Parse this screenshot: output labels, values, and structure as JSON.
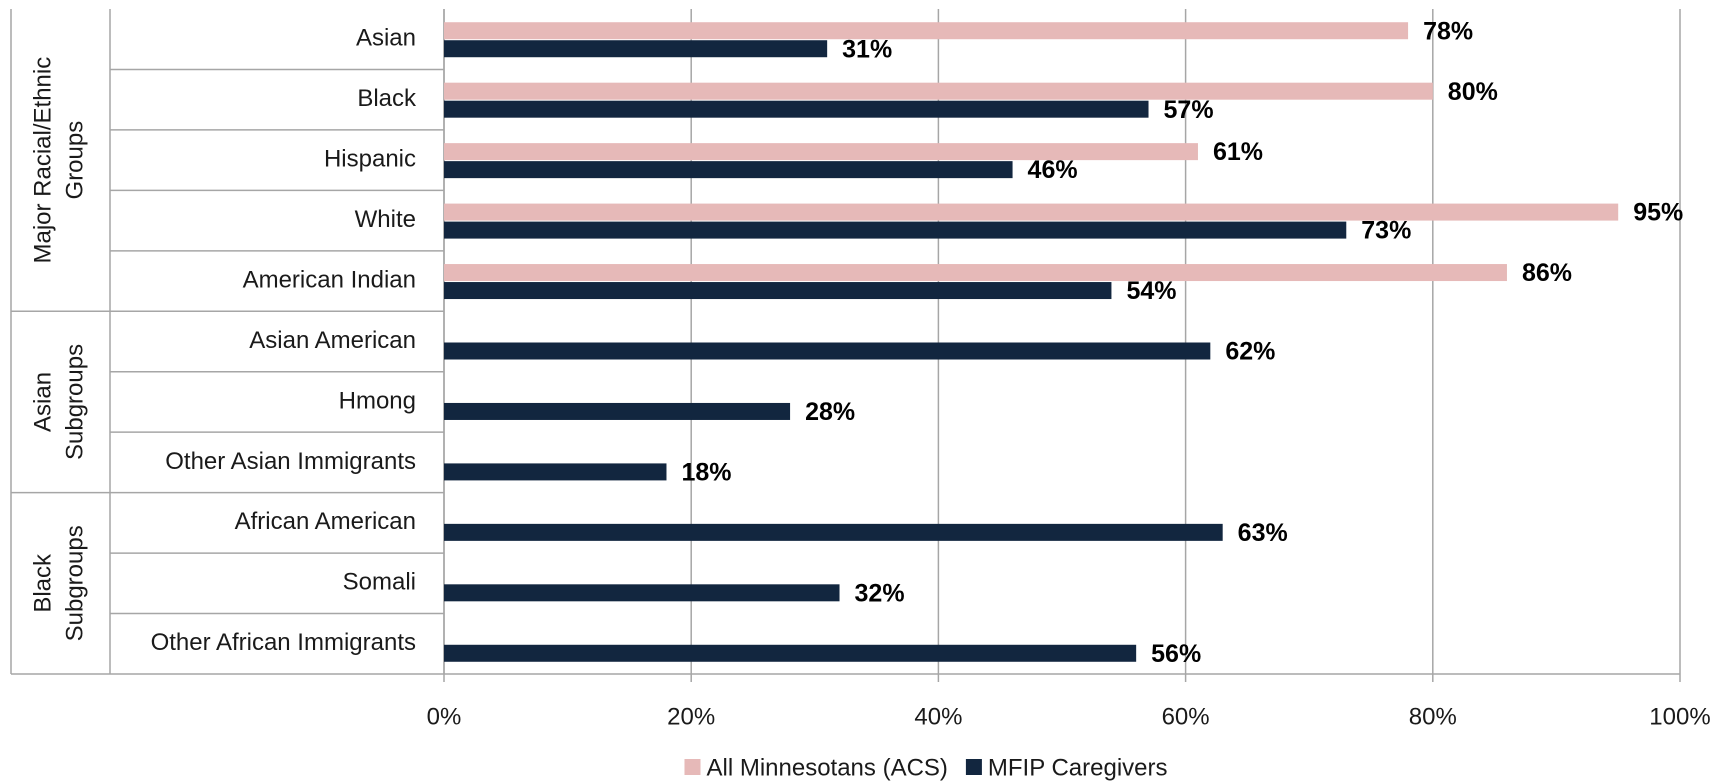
{
  "chart_data": {
    "type": "bar",
    "orientation": "horizontal",
    "groups": [
      {
        "label_lines": [
          "Major Racial/Ethnic",
          "Groups"
        ],
        "categories": [
          "Asian",
          "Black",
          "Hispanic",
          "White",
          "American Indian"
        ]
      },
      {
        "label_lines": [
          "Asian",
          "Subgroups"
        ],
        "categories": [
          "Asian American",
          "Hmong",
          "Other Asian Immigrants"
        ]
      },
      {
        "label_lines": [
          "Black",
          "Subgroups"
        ],
        "categories": [
          "African American",
          "Somali",
          "Other African Immigrants"
        ]
      }
    ],
    "series": [
      {
        "name": "All Minnesotans (ACS)",
        "color": "#e6b9b8",
        "values": [
          78,
          80,
          61,
          95,
          86,
          null,
          null,
          null,
          null,
          null,
          null
        ],
        "value_labels": [
          "78%",
          "80%",
          "61%",
          "95%",
          "86%",
          null,
          null,
          null,
          null,
          null,
          null
        ]
      },
      {
        "name": "MFIP Caregivers",
        "color": "#12263f",
        "values": [
          31,
          57,
          46,
          73,
          54,
          62,
          28,
          18,
          63,
          32,
          56
        ],
        "value_labels": [
          "31%",
          "57%",
          "46%",
          "73%",
          "54%",
          "62%",
          "28%",
          "18%",
          "63%",
          "32%",
          "56%"
        ]
      }
    ],
    "xlim": [
      0,
      100
    ],
    "xticks": [
      {
        "value": 0,
        "label": "0%"
      },
      {
        "value": 20,
        "label": "20%"
      },
      {
        "value": 40,
        "label": "40%"
      },
      {
        "value": 60,
        "label": "60%"
      },
      {
        "value": 80,
        "label": "80%"
      },
      {
        "value": 100,
        "label": "100%"
      }
    ],
    "grid": true,
    "legend": "bottom"
  }
}
